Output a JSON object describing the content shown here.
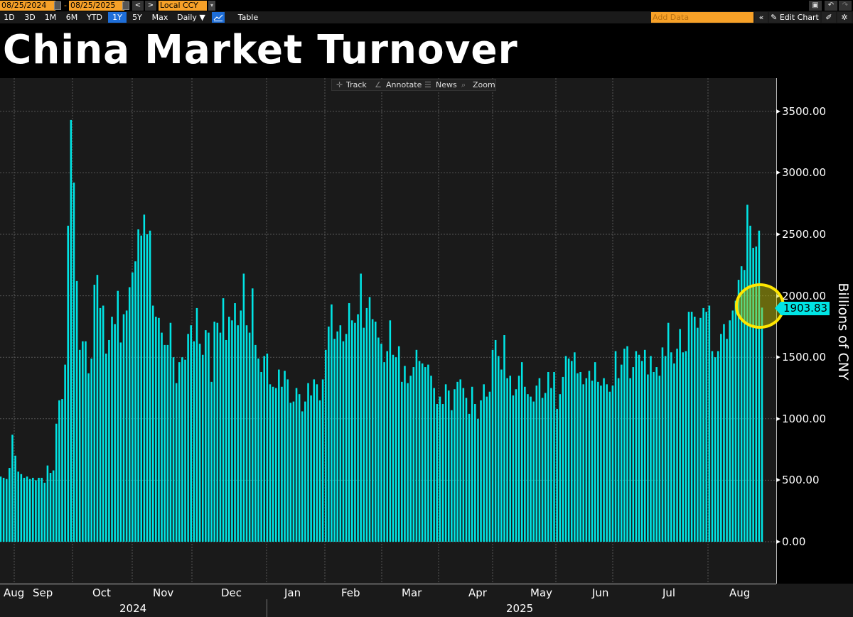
{
  "toolbar": {
    "start_date": "08/25/2024",
    "end_date": "08/25/2025",
    "date_separator": "-",
    "prev_label": "<",
    "next_label": ">",
    "currency": "Local CCY",
    "timeframes": [
      "1D",
      "3D",
      "1M",
      "6M",
      "YTD",
      "1Y",
      "5Y",
      "Max"
    ],
    "active_timeframe": "1Y",
    "frequency": "Daily ▼",
    "table_label": "Table",
    "add_data_placeholder": "Add Data",
    "collapse_label": "«",
    "edit_chart_label": "✎ Edit Chart",
    "pen_icon_label": "✐",
    "gear_icon_label": "✲",
    "present_icon_label": "▣",
    "undo_label": "↶",
    "redo_label": "↷"
  },
  "chart_tools": {
    "track": "Track",
    "annotate": "Annotate",
    "news": "News",
    "zoom": "Zoom"
  },
  "highlight": {
    "last_value": "1903.83",
    "accent_color": "#00e5e5",
    "circle_color": "#ffe600"
  },
  "chart_data": {
    "type": "bar",
    "title": "China Market Turnover",
    "xlabel": "",
    "ylabel": "Billions of CNY",
    "ylim": [
      -300,
      3750
    ],
    "yticks": [
      "3500.00",
      "3000.00",
      "2500.00",
      "2000.00",
      "1500.00",
      "1000.00",
      "500.00",
      "0.00"
    ],
    "ytick_values": [
      3500,
      3000,
      2500,
      2000,
      1500,
      1000,
      500,
      0
    ],
    "x_month_labels": [
      "Aug",
      "Sep",
      "Oct",
      "Nov",
      "Dec",
      "Jan",
      "Feb",
      "Mar",
      "Apr",
      "May",
      "Jun",
      "Jul",
      "Aug"
    ],
    "x_year_labels": [
      "2024",
      "2025"
    ],
    "grid": true,
    "series_color": "#00e5e5",
    "last_value": 1903.83,
    "series": [
      {
        "name": "China Market Turnover (Billions of CNY)",
        "values": [
          530,
          520,
          510,
          600,
          870,
          700,
          570,
          550,
          520,
          530,
          510,
          520,
          500,
          520,
          520,
          480,
          620,
          560,
          580,
          960,
          1150,
          1160,
          1440,
          2570,
          3430,
          2920,
          2120,
          1560,
          1630,
          1630,
          1370,
          1490,
          2090,
          2170,
          1900,
          1920,
          1530,
          1640,
          1830,
          1770,
          2040,
          1620,
          1850,
          1880,
          2070,
          2190,
          2280,
          2540,
          2490,
          2660,
          2500,
          2530,
          1920,
          1830,
          1820,
          1700,
          1600,
          1600,
          1780,
          1500,
          1290,
          1460,
          1500,
          1480,
          1690,
          1760,
          1630,
          1900,
          1610,
          1520,
          1720,
          1700,
          1300,
          1790,
          1780,
          1700,
          1980,
          1640,
          1830,
          1800,
          1940,
          1760,
          1880,
          2180,
          1760,
          1700,
          2060,
          1600,
          1490,
          1380,
          1510,
          1530,
          1280,
          1260,
          1250,
          1400,
          1260,
          1390,
          1320,
          1130,
          1140,
          1250,
          1200,
          1060,
          1140,
          1290,
          1190,
          1320,
          1280,
          1150,
          1320,
          1560,
          1750,
          1930,
          1650,
          1710,
          1760,
          1630,
          1690,
          1940,
          1800,
          1780,
          1850,
          2180,
          1740,
          1900,
          1990,
          1810,
          1790,
          1660,
          1610,
          1460,
          1550,
          1800,
          1520,
          1500,
          1590,
          1300,
          1430,
          1290,
          1350,
          1420,
          1560,
          1470,
          1450,
          1420,
          1440,
          1350,
          1250,
          1120,
          1180,
          1120,
          1280,
          1230,
          1070,
          1240,
          1300,
          1320,
          1250,
          1170,
          1040,
          1260,
          1120,
          1000,
          1150,
          1280,
          1180,
          1220,
          1560,
          1640,
          1510,
          1400,
          1680,
          1330,
          1350,
          1190,
          1240,
          1350,
          1460,
          1260,
          1200,
          1180,
          1140,
          1270,
          1330,
          1170,
          1210,
          1380,
          1250,
          1380,
          1080,
          1200,
          1340,
          1510,
          1490,
          1470,
          1540,
          1370,
          1380,
          1280,
          1330,
          1390,
          1310,
          1460,
          1300,
          1270,
          1330,
          1280,
          1220,
          1270,
          1550,
          1330,
          1440,
          1570,
          1590,
          1330,
          1420,
          1550,
          1520,
          1470,
          1560,
          1360,
          1510,
          1380,
          1420,
          1350,
          1580,
          1510,
          1780,
          1540,
          1450,
          1570,
          1730,
          1540,
          1550,
          1870,
          1870,
          1830,
          1740,
          1820,
          1900,
          1870,
          1920,
          1550,
          1500,
          1550,
          1690,
          1770,
          1650,
          1800,
          1880,
          1960,
          2130,
          2240,
          2210,
          2740,
          2570,
          2390,
          2400,
          2530,
          1904
        ]
      }
    ]
  }
}
